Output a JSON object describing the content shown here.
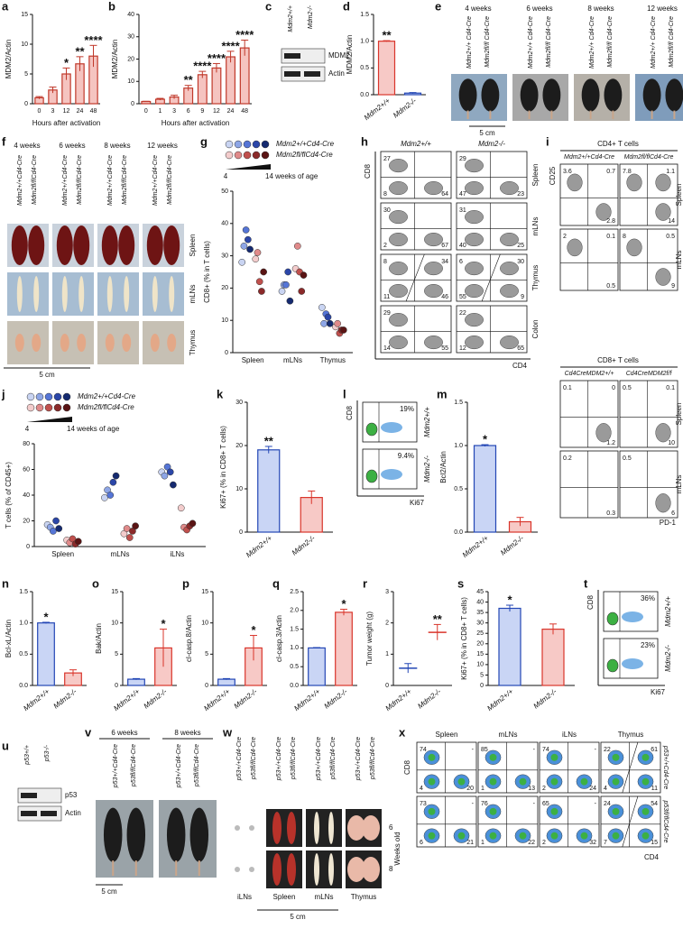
{
  "panels": {
    "a": {
      "label": "a",
      "type": "bar",
      "ylabel": "MDM2/Actin",
      "xlabel": "Hours after activation",
      "categories": [
        "0",
        "3",
        "12",
        "24",
        "48"
      ],
      "values": [
        1,
        2.3,
        5,
        6.7,
        8
      ],
      "errors": [
        0.2,
        0.5,
        1,
        1.2,
        1.8
      ],
      "significance": [
        null,
        null,
        "*",
        "**",
        "****"
      ],
      "color": "#c0392b",
      "fill": "#f5c4c0",
      "ylim": [
        0,
        15
      ],
      "yticks": [
        0,
        5,
        10,
        15
      ]
    },
    "b": {
      "label": "b",
      "type": "bar",
      "ylabel": "MDM2/Actin",
      "xlabel": "Hours after activation",
      "categories": [
        "0",
        "1",
        "3",
        "6",
        "9",
        "12",
        "24",
        "48"
      ],
      "values": [
        1,
        2,
        3,
        7,
        13,
        16,
        21,
        25
      ],
      "errors": [
        0.1,
        0.4,
        0.8,
        1.2,
        1.5,
        2,
        2.5,
        3.5
      ],
      "significance": [
        null,
        null,
        null,
        "**",
        "****",
        "****",
        "****",
        "****"
      ],
      "color": "#c0392b",
      "fill": "#f5c4c0",
      "ylim": [
        0,
        40
      ],
      "yticks": [
        0,
        10,
        20,
        30,
        40
      ]
    },
    "c": {
      "label": "c",
      "lanes": [
        "Mdm2+/+",
        "Mdm2-/-"
      ],
      "bands": [
        "MDM2",
        "Actin"
      ]
    },
    "d": {
      "label": "d",
      "type": "bar",
      "ylabel": "MDM2/Actin",
      "categories": [
        "Mdm2+/+",
        "Mdm2-/-"
      ],
      "values": [
        1.0,
        0.03
      ],
      "errors": [
        0.01,
        0.01
      ],
      "significance": [
        "**",
        null
      ],
      "colors": [
        "#d9352b",
        "#2346b5"
      ],
      "fills": [
        "#f7c9c6",
        "#c9d5f5"
      ],
      "ylim": [
        0,
        1.5
      ],
      "yticks": [
        {
          "value": 0,
          "label": "0.0"
        },
        {
          "value": 0.5,
          "label": "0.5"
        },
        {
          "value": 1,
          "label": "1.0"
        },
        {
          "value": 1.5,
          "label": "1.5"
        }
      ]
    },
    "e": {
      "label": "e",
      "groups": [
        {
          "title": "4 weeks",
          "genotypes": [
            "Mdm2+/+ Cd4-Cre",
            "Mdm2fl/fl Cd4-Cre"
          ]
        },
        {
          "title": "6 weeks",
          "genotypes": [
            "Mdm2+/+ Cd4-Cre",
            "Mdm2fl/fl Cd4-Cre"
          ]
        },
        {
          "title": "8 weeks",
          "genotypes": [
            "Mdm2+/+ Cd4-Cre",
            "Mdm2fl/fl Cd4-Cre"
          ]
        },
        {
          "title": "12 weeks",
          "genotypes": [
            "Mdm2+/+ Cd4-Cre",
            "Mdm2fl/fl Cd4-Cre"
          ]
        }
      ],
      "scale": "5 cm"
    },
    "f": {
      "label": "f",
      "groups": [
        {
          "title": "4 weeks",
          "genotypes": [
            "Mdm2+/+Cd4-Cre",
            "Mdm2fl/flCd4-Cre"
          ]
        },
        {
          "title": "6 weeks",
          "genotypes": [
            "Mdm2+/+Cd4-Cre",
            "Mdm2fl/flCd4-Cre"
          ]
        },
        {
          "title": "8 weeks",
          "genotypes": [
            "Mdm2+/+Cd4-Cre",
            "Mdm2fl/flCd4-Cre"
          ]
        },
        {
          "title": "12 weeks",
          "genotypes": [
            "Mdm2+/+Cd4-Cre",
            "Mdm2fl/flCd4-Cre"
          ]
        }
      ],
      "rows": [
        "Spleen",
        "mLNs",
        "Thymus"
      ],
      "scale": "5 cm"
    },
    "g": {
      "label": "g",
      "ylabel": "CD8+ (% in T cells)",
      "age_start": "4",
      "age_end": "14 weeks of age",
      "categories": [
        "Spleen",
        "mLNs",
        "Thymus"
      ],
      "ylim": [
        0,
        50
      ],
      "yticks": [
        0,
        10,
        20,
        30,
        40,
        50
      ],
      "series": [
        {
          "name": "Mdm2+/+Cd4-Cre",
          "colors": [
            "#c9d4f2",
            "#8ea6e6",
            "#5575d6",
            "#2b46a8",
            "#152a70"
          ],
          "values": [
            [
              28,
              33,
              38,
              35,
              32
            ],
            [
              19,
              21,
              21,
              25,
              16
            ],
            [
              14,
              9,
              12,
              11,
              9
            ]
          ]
        },
        {
          "name": "Mdm2fl/flCd4-Cre",
          "colors": [
            "#f3cccc",
            "#e08a8a",
            "#c0504d",
            "#8b2a2a",
            "#5a1414"
          ],
          "values": [
            [
              29,
              31,
              22,
              19,
              25
            ],
            [
              26,
              33,
              25,
              19,
              24
            ],
            [
              8,
              9,
              6,
              7,
              7
            ]
          ]
        }
      ]
    },
    "h": {
      "label": "h",
      "columns": [
        "Mdm2+/+",
        "Mdm2-/-"
      ],
      "rows": [
        "Spleen",
        "mLNs",
        "Thymus",
        "Colon"
      ],
      "xaxis": "CD4",
      "yaxis": "CD8",
      "quadrants": [
        [
          {
            "tl": 27,
            "bl": 8,
            "br": 64
          },
          {
            "tl": 29,
            "bl": 47,
            "br": 23
          }
        ],
        [
          {
            "tl": 30,
            "bl": 2,
            "br": 67
          },
          {
            "tl": 31,
            "bl": 40,
            "br": 25
          }
        ],
        [
          {
            "tl": 8,
            "tr": 34,
            "bl": 11,
            "br": 46
          },
          {
            "tl": 6,
            "tr": 30,
            "bl": 55,
            "br": 9
          }
        ],
        [
          {
            "tl": 29,
            "bl": 14,
            "br": 55
          },
          {
            "tl": 22,
            "bl": 12,
            "br": 65
          }
        ]
      ]
    },
    "i": {
      "label": "i",
      "xaxis": "PD-1",
      "yaxis": "CD25",
      "sections": [
        {
          "title": "CD4+ T cells",
          "columns": [
            "Mdm2+/+Cd4-Cre",
            "Mdm2fl/flCd4-Cre"
          ],
          "rows": [
            "Spleen",
            "mLNs"
          ],
          "quadrants": [
            [
              {
                "tl": 3.6,
                "tr": 0.7,
                "br": 2.8
              },
              {
                "tl": 7.8,
                "tr": 1.1,
                "br": 14
              }
            ],
            [
              {
                "tl": 2,
                "tr": 0.1,
                "br": 0.5
              },
              {
                "tl": 8,
                "tr": 0.5,
                "br": 9
              }
            ]
          ]
        },
        {
          "title": "CD8+ T cells",
          "columns": [
            "Cd4CreMDM2+/+",
            "Cd4CreMDM2f/f"
          ],
          "rows": [
            "Spleen",
            "mLNs"
          ],
          "quadrants": [
            [
              {
                "tl": 0.1,
                "tr": 0,
                "br": 1.2
              },
              {
                "tl": 0.5,
                "tr": 0.1,
                "br": 10
              }
            ],
            [
              {
                "tl": 0.2,
                "br": 0.3
              },
              {
                "tl": 0.5,
                "br": 6
              }
            ]
          ]
        }
      ]
    },
    "j": {
      "label": "j",
      "ylabel": "T cells (% of CD45+)",
      "age_start": "4",
      "age_end": "14 weeks of age",
      "categories": [
        "Spleen",
        "mLNs",
        "iLNs"
      ],
      "ylim": [
        0,
        80
      ],
      "yticks": [
        0,
        20,
        40,
        60,
        80
      ],
      "series": [
        {
          "name": "Mdm2+/+Cd4-Cre",
          "colors": [
            "#c9d4f2",
            "#8ea6e6",
            "#5575d6",
            "#2b46a8",
            "#152a70"
          ],
          "values": [
            [
              17,
              15,
              12,
              20,
              14
            ],
            [
              38,
              44,
              40,
              50,
              55
            ],
            [
              58,
              55,
              62,
              58,
              48
            ]
          ]
        },
        {
          "name": "Mdm2fl/flCd4-Cre",
          "colors": [
            "#f3cccc",
            "#e08a8a",
            "#c0504d",
            "#8b2a2a",
            "#5a1414"
          ],
          "values": [
            [
              5,
              3,
              6,
              2,
              4
            ],
            [
              10,
              14,
              7,
              12,
              16
            ],
            [
              30,
              15,
              13,
              16,
              18
            ]
          ]
        }
      ]
    },
    "k": {
      "label": "k",
      "type": "bar",
      "ylabel": "Ki67+ (% in CD8+ T cells)",
      "categories": [
        "Mdm2+/+",
        "Mdm2-/-"
      ],
      "values": [
        19,
        8
      ],
      "errors": [
        0.8,
        1.5
      ],
      "significance": [
        "**",
        null
      ],
      "colors": [
        "#2346b5",
        "#d9352b"
      ],
      "fills": [
        "#c9d5f5",
        "#f7c9c6"
      ],
      "ylim": [
        0,
        30
      ],
      "yticks": [
        0,
        10,
        20,
        30
      ]
    },
    "l": {
      "label": "l",
      "xaxis": "Ki67",
      "yaxis": "CD8",
      "plots": [
        {
          "genotype": "Mdm2+/+",
          "percent": "19%"
        },
        {
          "genotype": "Mdm2-/-",
          "percent": "9.4%"
        }
      ]
    },
    "m": {
      "label": "m",
      "type": "bar",
      "ylabel": "Bcl2/Actin",
      "categories": [
        "Mdm2+/+",
        "Mdm2-/-"
      ],
      "values": [
        1.0,
        0.12
      ],
      "errors": [
        0.01,
        0.05
      ],
      "significance": [
        "*",
        null
      ],
      "colors": [
        "#2346b5",
        "#d9352b"
      ],
      "fills": [
        "#c9d5f5",
        "#f7c9c6"
      ],
      "ylim": [
        0,
        1.5
      ],
      "yticks": [
        {
          "value": 0,
          "label": "0.0"
        },
        {
          "value": 0.5,
          "label": "0.5"
        },
        {
          "value": 1,
          "label": "1.0"
        },
        {
          "value": 1.5,
          "label": "1.5"
        }
      ]
    },
    "n": {
      "label": "n",
      "type": "bar",
      "ylabel": "Bcl-xL/Actin",
      "categories": [
        "Mdm2+/+",
        "Mdm2-/-"
      ],
      "values": [
        1.0,
        0.2
      ],
      "errors": [
        0.01,
        0.05
      ],
      "significance": [
        "*",
        null
      ],
      "colors": [
        "#2346b5",
        "#d9352b"
      ],
      "fills": [
        "#c9d5f5",
        "#f7c9c6"
      ],
      "ylim": [
        0,
        1.5
      ],
      "yticks": [
        {
          "value": 0,
          "label": "0.0"
        },
        {
          "value": 0.5,
          "label": "0.5"
        },
        {
          "value": 1,
          "label": "1.0"
        },
        {
          "value": 1.5,
          "label": "1.5"
        }
      ]
    },
    "o": {
      "label": "o",
      "type": "bar",
      "ylabel": "Bak/Actin",
      "categories": [
        "Mdm2+/+",
        "Mdm2-/-"
      ],
      "values": [
        1,
        6
      ],
      "errors": [
        0.1,
        3
      ],
      "significance": [
        null,
        "*"
      ],
      "colors": [
        "#2346b5",
        "#d9352b"
      ],
      "fills": [
        "#c9d5f5",
        "#f7c9c6"
      ],
      "ylim": [
        0,
        15
      ],
      "yticks": [
        0,
        5,
        10,
        15
      ]
    },
    "p": {
      "label": "p",
      "type": "bar",
      "ylabel": "cl-casp.8/Actin",
      "categories": [
        "Mdm2+/+",
        "Mdm2-/-"
      ],
      "values": [
        1,
        6
      ],
      "errors": [
        0.1,
        2
      ],
      "significance": [
        null,
        "*"
      ],
      "colors": [
        "#2346b5",
        "#d9352b"
      ],
      "fills": [
        "#c9d5f5",
        "#f7c9c6"
      ],
      "ylim": [
        0,
        15
      ],
      "yticks": [
        0,
        5,
        10,
        15
      ]
    },
    "q": {
      "label": "q",
      "type": "bar",
      "ylabel": "cl-casp.3/Actin",
      "categories": [
        "Mdm2+/+",
        "Mdm2-/-"
      ],
      "values": [
        1.0,
        1.95
      ],
      "errors": [
        0.01,
        0.08
      ],
      "significance": [
        null,
        "*"
      ],
      "colors": [
        "#2346b5",
        "#d9352b"
      ],
      "fills": [
        "#c9d5f5",
        "#f7c9c6"
      ],
      "ylim": [
        0,
        2.5
      ],
      "yticks": [
        {
          "value": 0,
          "label": "0.0"
        },
        {
          "value": 0.5,
          "label": "0.5"
        },
        {
          "value": 1,
          "label": "1.0"
        },
        {
          "value": 1.5,
          "label": "1.5"
        },
        {
          "value": 2,
          "label": "2.0"
        },
        {
          "value": 2.5,
          "label": "2.5"
        }
      ]
    },
    "r": {
      "label": "r",
      "type": "strip",
      "ylabel": "Tumor weight (g)",
      "categories": [
        "Mdm2+/+",
        "Mdm2-/-"
      ],
      "values": [
        0.55,
        1.7
      ],
      "errors": [
        0.15,
        0.25
      ],
      "significance": [
        null,
        "**"
      ],
      "colors": [
        "#2346b5",
        "#d9352b"
      ],
      "ylim": [
        0,
        3
      ],
      "yticks": [
        0,
        1,
        2,
        3
      ]
    },
    "s": {
      "label": "s",
      "type": "bar",
      "ylabel": "Ki67+ (% in CD8+ T cells)",
      "categories": [
        "Mdm2+/+",
        "Mdm2-/-"
      ],
      "values": [
        37,
        27
      ],
      "errors": [
        1.5,
        2.5
      ],
      "significance": [
        "*",
        null
      ],
      "colors": [
        "#2346b5",
        "#d9352b"
      ],
      "fills": [
        "#c9d5f5",
        "#f7c9c6"
      ],
      "ylim": [
        0,
        45
      ],
      "yticks": [
        0,
        5,
        10,
        15,
        20,
        25,
        30,
        35,
        40,
        45
      ]
    },
    "t": {
      "label": "t",
      "xaxis": "Ki67",
      "yaxis": "CD8",
      "plots": [
        {
          "genotype": "Mdm2+/+",
          "percent": "36%"
        },
        {
          "genotype": "Mdm2-/-",
          "percent": "23%"
        }
      ]
    },
    "u": {
      "label": "u",
      "lanes": [
        "p53+/+",
        "p53-/-"
      ],
      "bands": [
        "p53",
        "Actin"
      ]
    },
    "v": {
      "label": "v",
      "groups": [
        {
          "title": "6 weeks",
          "genotypes": [
            "p53+/+Cd4-Cre",
            "p53fl/flCd4-Cre"
          ]
        },
        {
          "title": "8 weeks",
          "genotypes": [
            "p53+/+Cd4-Cre",
            "p53fl/flCd4-Cre"
          ]
        }
      ],
      "scale": "5 cm"
    },
    "w": {
      "label": "w",
      "groups": [
        {
          "tissue": "iLNs",
          "genotypes": [
            "p53+/+Cd4-Cre",
            "p53fl/flCd4-Cre"
          ]
        },
        {
          "tissue": "Spleen",
          "genotypes": [
            "p53+/+Cd4-Cre",
            "p53fl/flCd4-Cre"
          ]
        },
        {
          "tissue": "mLNs",
          "genotypes": [
            "p53+/+Cd4-Cre",
            "p53fl/flCd4-Cre"
          ]
        },
        {
          "tissue": "Thymus",
          "genotypes": [
            "p53+/+Cd4-Cre",
            "p53fl/flCd4-Cre"
          ]
        }
      ],
      "rows": [
        "6",
        "8"
      ],
      "row_title": "Weeks old",
      "scale": "5 cm"
    },
    "x": {
      "label": "x",
      "columns": [
        "Spleen",
        "mLNs",
        "iLNs",
        "Thymus"
      ],
      "rows": [
        "p53+/+Cd4-Cre",
        "p53fl/flCd4-Cre"
      ],
      "xaxis": "CD4",
      "yaxis": "CD8",
      "quadrants": [
        [
          {
            "tl": 74,
            "tr": "-",
            "bl": 4,
            "br": 20
          },
          {
            "tl": 85,
            "tr": "-",
            "bl": 1,
            "br": 13
          },
          {
            "tl": 74,
            "tr": "-",
            "bl": 2,
            "br": 24
          },
          {
            "tl": 22,
            "tr": 61,
            "bl": 4,
            "br": 11
          }
        ],
        [
          {
            "tl": 73,
            "tr": "-",
            "bl": 6,
            "br": 21
          },
          {
            "tl": 76,
            "tr": "-",
            "bl": 1,
            "br": 22
          },
          {
            "tl": 65,
            "tr": "-",
            "bl": 2,
            "br": 32
          },
          {
            "tl": 24,
            "tr": 54,
            "bl": 7,
            "br": 15
          }
        ]
      ]
    }
  }
}
